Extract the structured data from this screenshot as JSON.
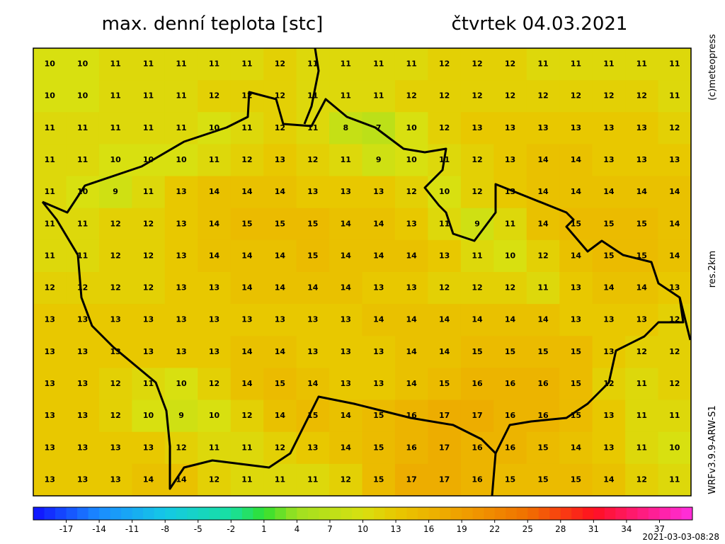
{
  "header": {
    "title": "max. denní teplota [stc]",
    "date": "čtvrtek 04.03.2021"
  },
  "side_labels": [
    "(c)meteopress",
    "res.2km",
    "WRFv3.9.9-ARW-S1"
  ],
  "timestamp": "2021-03-03-08:28",
  "grid": {
    "values": [
      [
        10,
        10,
        11,
        11,
        11,
        11,
        11,
        12,
        11,
        11,
        11,
        11,
        12,
        12,
        12,
        11,
        11,
        11,
        11,
        11
      ],
      [
        10,
        10,
        11,
        11,
        11,
        12,
        12,
        12,
        11,
        11,
        11,
        12,
        12,
        12,
        12,
        12,
        12,
        12,
        12,
        11
      ],
      [
        11,
        11,
        11,
        11,
        11,
        10,
        11,
        12,
        11,
        8,
        7,
        10,
        12,
        13,
        13,
        13,
        13,
        13,
        13,
        12
      ],
      [
        11,
        11,
        10,
        10,
        10,
        11,
        12,
        13,
        12,
        11,
        9,
        10,
        11,
        12,
        13,
        14,
        14,
        13,
        13,
        13
      ],
      [
        11,
        10,
        9,
        11,
        13,
        14,
        14,
        14,
        13,
        13,
        13,
        12,
        10,
        12,
        13,
        14,
        14,
        14,
        14,
        14
      ],
      [
        11,
        11,
        12,
        12,
        13,
        14,
        15,
        15,
        15,
        14,
        14,
        13,
        11,
        9,
        11,
        14,
        15,
        15,
        15,
        14
      ],
      [
        11,
        11,
        12,
        12,
        13,
        14,
        14,
        14,
        15,
        14,
        14,
        14,
        13,
        11,
        10,
        12,
        14,
        15,
        15,
        14
      ],
      [
        12,
        12,
        12,
        12,
        13,
        13,
        14,
        14,
        14,
        14,
        13,
        13,
        12,
        12,
        12,
        11,
        13,
        14,
        14,
        13
      ],
      [
        13,
        13,
        13,
        13,
        13,
        13,
        13,
        13,
        13,
        13,
        14,
        14,
        14,
        14,
        14,
        14,
        13,
        13,
        13,
        12
      ],
      [
        13,
        13,
        13,
        13,
        13,
        13,
        14,
        14,
        13,
        13,
        13,
        14,
        14,
        15,
        15,
        15,
        15,
        13,
        12,
        12
      ],
      [
        13,
        13,
        12,
        11,
        10,
        12,
        14,
        15,
        14,
        13,
        13,
        14,
        15,
        16,
        16,
        16,
        15,
        12,
        11,
        12
      ],
      [
        13,
        13,
        12,
        10,
        9,
        10,
        12,
        14,
        15,
        14,
        15,
        16,
        17,
        17,
        16,
        16,
        15,
        13,
        11,
        11
      ],
      [
        13,
        13,
        13,
        13,
        12,
        11,
        11,
        12,
        13,
        14,
        15,
        16,
        17,
        16,
        16,
        15,
        14,
        13,
        11,
        10
      ],
      [
        13,
        13,
        13,
        14,
        14,
        12,
        11,
        11,
        11,
        12,
        15,
        17,
        17,
        16,
        15,
        15,
        15,
        14,
        12,
        11
      ]
    ]
  },
  "colorbar": {
    "range": [
      -20,
      40
    ],
    "ticks": [
      -17,
      -14,
      -11,
      -8,
      -5,
      -2,
      1,
      4,
      7,
      10,
      13,
      16,
      19,
      22,
      25,
      28,
      31,
      34,
      37
    ],
    "stops": [
      [
        -20,
        "#1010ff"
      ],
      [
        -14,
        "#1a8cff"
      ],
      [
        -8,
        "#14c8e6"
      ],
      [
        -2,
        "#18e0a0"
      ],
      [
        1,
        "#30e030"
      ],
      [
        4,
        "#a0e020"
      ],
      [
        10,
        "#d8e010"
      ],
      [
        13,
        "#e8c800"
      ],
      [
        19,
        "#f0a000"
      ],
      [
        25,
        "#f07000"
      ],
      [
        31,
        "#ff1020"
      ],
      [
        37,
        "#ff20a0"
      ],
      [
        40,
        "#ff30e0"
      ]
    ]
  }
}
